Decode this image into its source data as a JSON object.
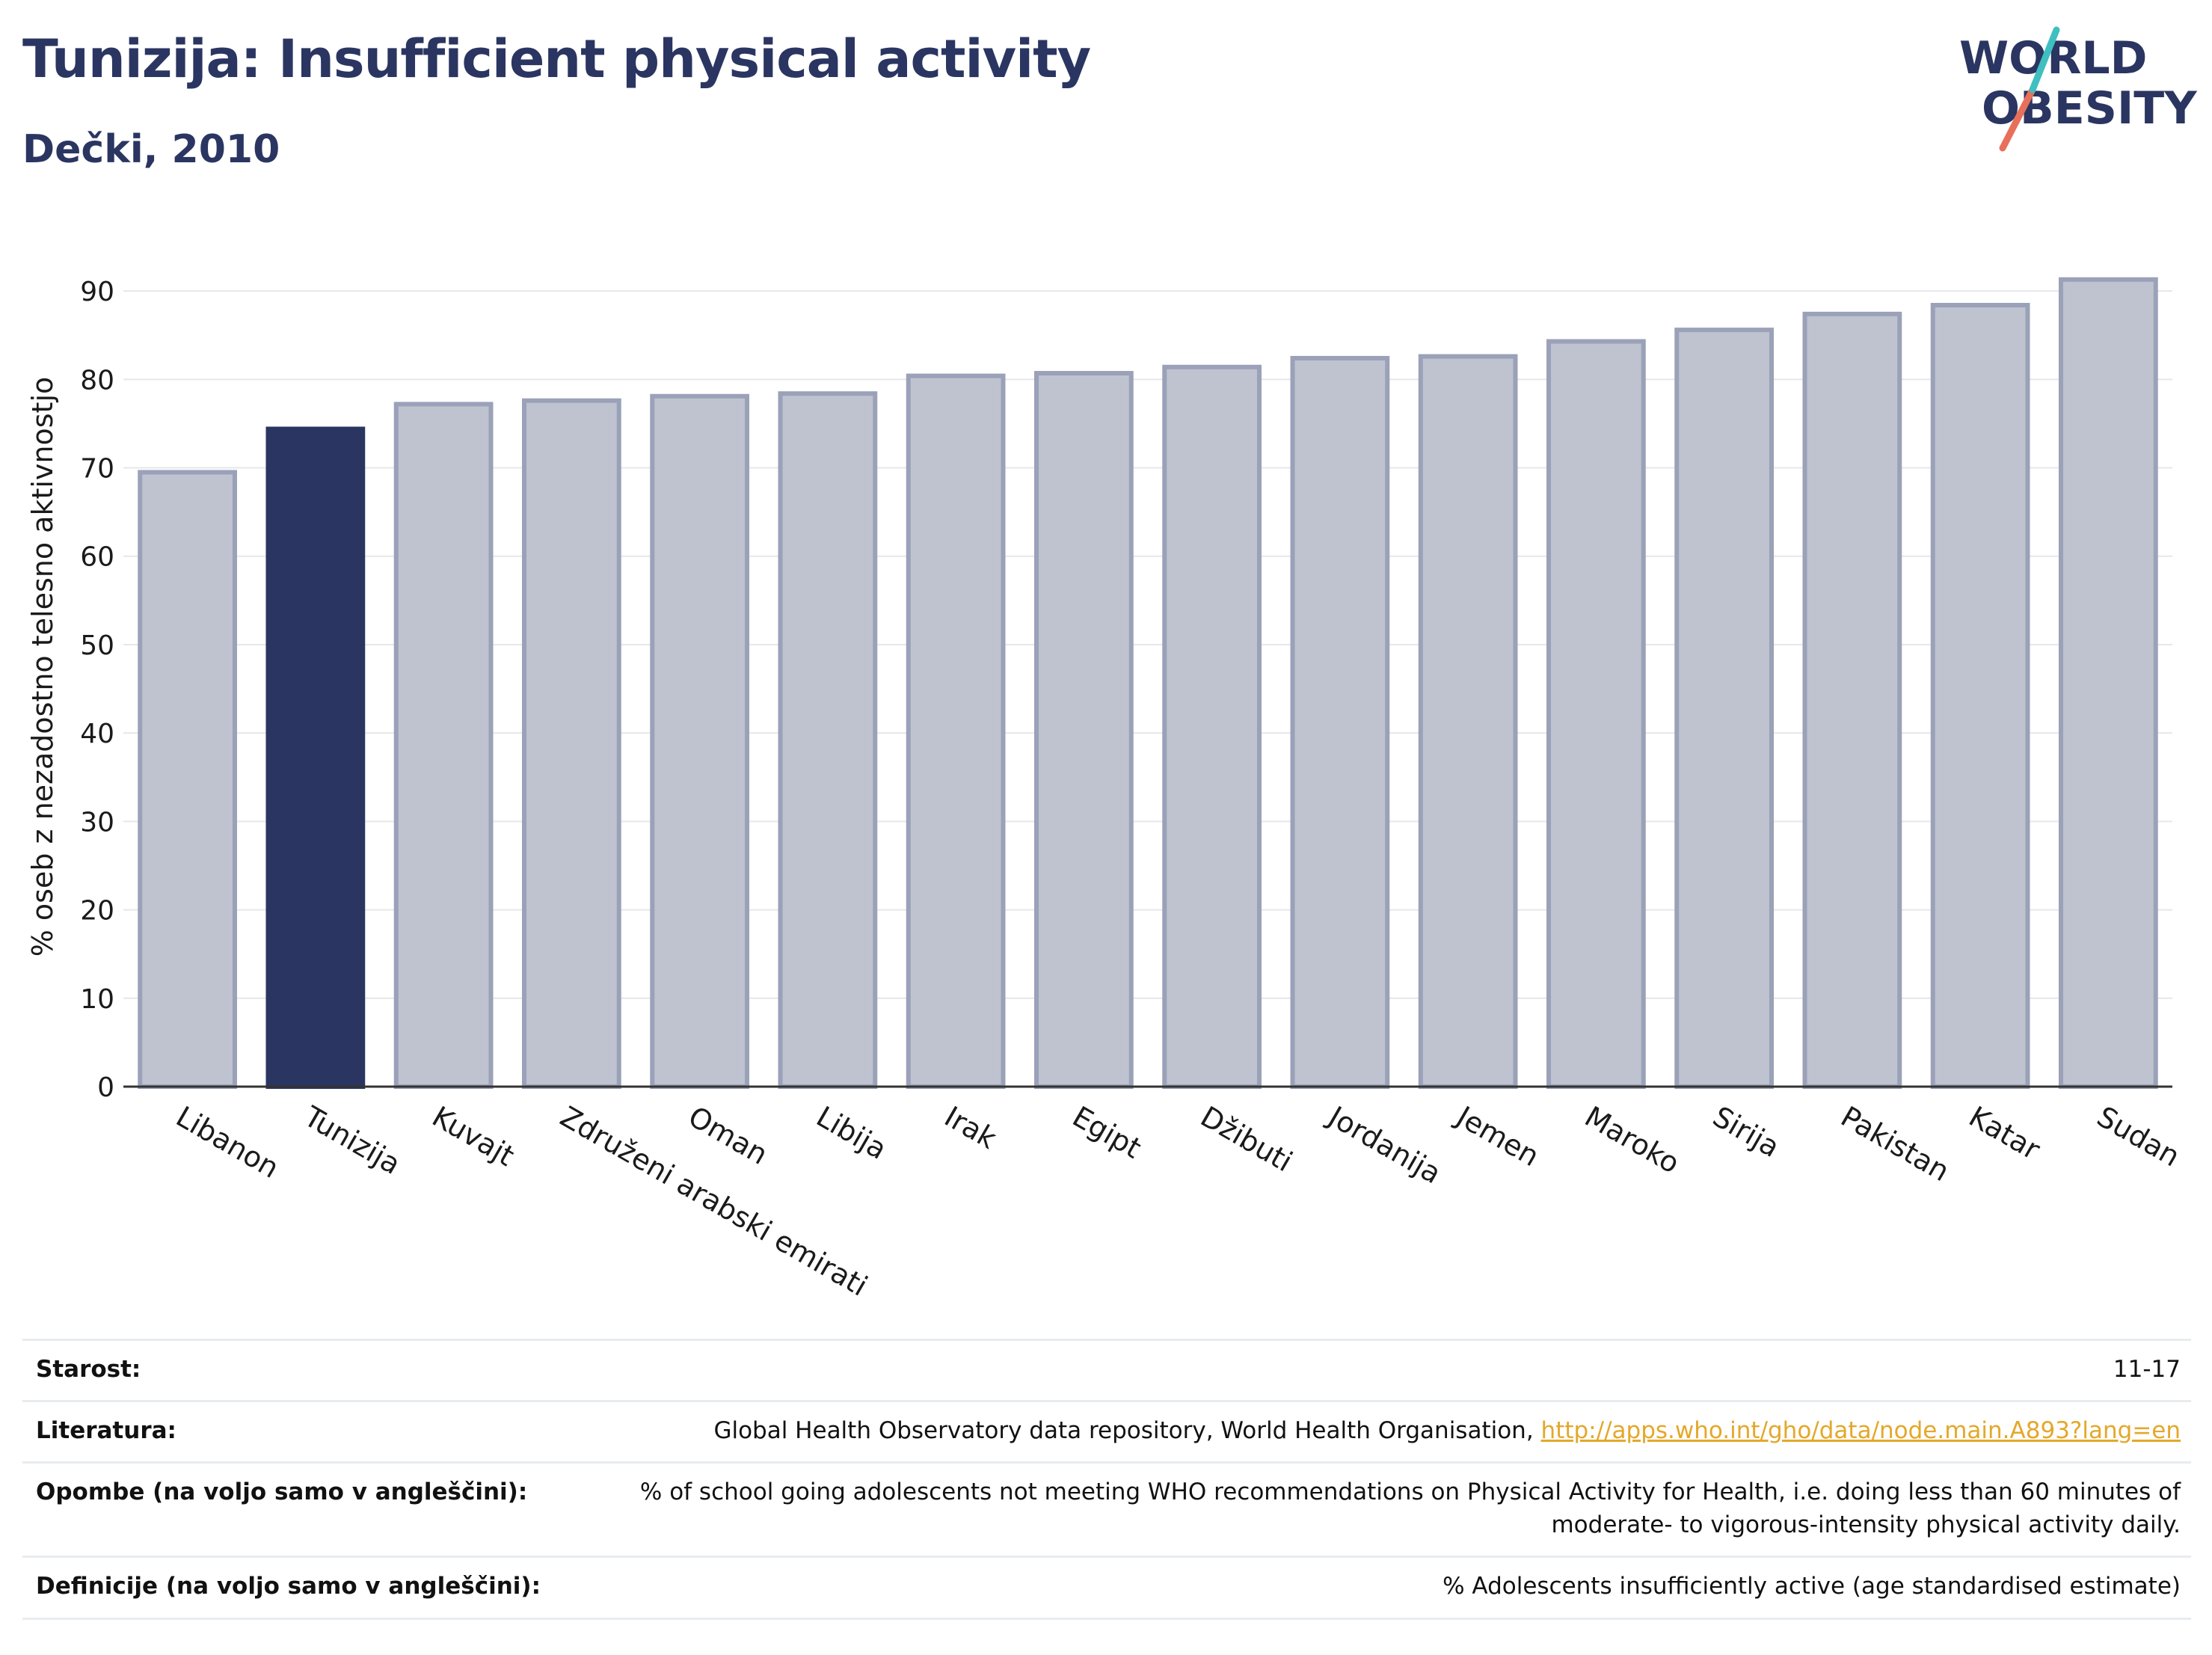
{
  "header": {
    "title": "Tunizija: Insufficient physical activity",
    "subtitle": "Dečki, 2010"
  },
  "logo": {
    "line1": "WORLD",
    "line2": "OBESITY"
  },
  "chart_data": {
    "type": "bar",
    "categories": [
      "Libanon",
      "Tunizija",
      "Kuvajt",
      "Združeni arabski emirati",
      "Oman",
      "Libija",
      "Irak",
      "Egipt",
      "Džibuti",
      "Jordanija",
      "Jemen",
      "Maroko",
      "Sirija",
      "Pakistan",
      "Katar",
      "Sudan"
    ],
    "values": [
      69.5,
      74.4,
      77.2,
      77.6,
      78.1,
      78.4,
      80.4,
      80.7,
      81.4,
      82.4,
      82.6,
      84.3,
      85.6,
      87.4,
      88.4,
      91.3
    ],
    "highlight": "Tunizija",
    "ylabel": "% oseb z nezadostno telesno aktivnostjo",
    "xlabel": "",
    "ylim": [
      0,
      95
    ],
    "yticks": [
      0,
      10,
      20,
      30,
      40,
      50,
      60,
      70,
      80,
      90
    ],
    "grid": true,
    "colors": {
      "bar": "#bfc3d0",
      "bar_edge": "#9aa1b8",
      "highlight": "#2a3561"
    }
  },
  "footer": {
    "age_label": "Starost:",
    "age_value": "11-17",
    "lit_label": "Literatura:",
    "lit_text": "Global Health Observatory data repository, World Health Organisation,",
    "lit_link": "http://apps.who.int/gho/data/node.main.A893?lang=en",
    "notes_label": "Opombe (na voljo samo v angleščini):",
    "notes_line1": "% of school going adolescents not meeting WHO recommendations on Physical Activity for Health, i.e. doing less than 60 minutes of",
    "notes_line2": "moderate- to vigorous-intensity physical activity daily.",
    "def_label": "Definicije (na voljo samo v angleščini):",
    "def_value": "% Adolescents insufficiently active (age standardised estimate)"
  }
}
